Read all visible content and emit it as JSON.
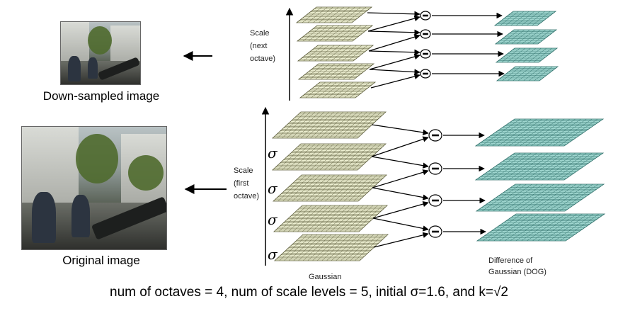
{
  "images": {
    "downsampled_caption": "Down-sampled image",
    "original_caption": "Original image"
  },
  "diagram": {
    "scale_next": [
      "Scale",
      "(next",
      "octave)"
    ],
    "scale_first": [
      "Scale",
      "(first",
      "octave)"
    ],
    "sigma_symbol": "σ",
    "minus_symbol": "−",
    "gaussian_label": "Gaussian",
    "dog_label": [
      "Difference of",
      "Gaussian (DOG)"
    ]
  },
  "formula": "num of octaves = 4, num of scale levels = 5,  initial σ=1.6, and k=√2",
  "colors": {
    "gaussian_fill": "#eef0d2",
    "gaussian_grid": "#5b5b3a",
    "dog_fill": "#9fd6cf",
    "dog_grid": "#2f6f6a",
    "arrow": "#000000"
  }
}
